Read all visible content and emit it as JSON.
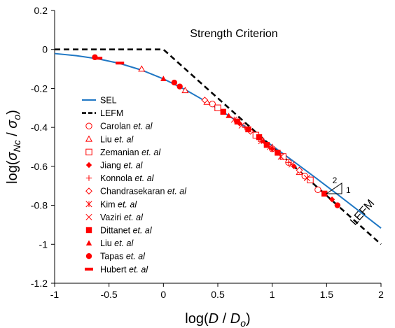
{
  "chart_data": {
    "type": "scatter",
    "xlabel": "log(D / D_o)",
    "ylabel": "log(σ_Nc / σ_o)",
    "xlim": [
      -1,
      2
    ],
    "ylim": [
      -1.2,
      0.2
    ],
    "x_ticks": [
      "-1",
      "-0.5",
      "0",
      "0.5",
      "1",
      "1.5",
      "2"
    ],
    "y_ticks": [
      "0.2",
      "0",
      "-0.2",
      "-0.4",
      "-0.6",
      "-0.8",
      "-1",
      "-1.2"
    ],
    "grid": false,
    "legend_position": "left-middle",
    "annotations": {
      "strength_criterion": "Strength Criterion",
      "lefm": "LEFM",
      "slope_rise": "2",
      "slope_run": "1"
    },
    "colors": {
      "sel": "#1f77c4",
      "data": "#ff0000",
      "lefm": "#000000"
    },
    "lines": [
      {
        "name": "SEL",
        "style": "solid",
        "color": "#1f77c4",
        "x": [
          -1,
          -0.8,
          -0.6,
          -0.4,
          -0.2,
          0,
          0.2,
          0.4,
          0.6,
          0.8,
          1.0,
          1.2,
          1.4,
          1.6,
          1.8,
          2.0
        ],
        "y": [
          -0.021,
          -0.032,
          -0.048,
          -0.072,
          -0.106,
          -0.151,
          -0.206,
          -0.27,
          -0.34,
          -0.415,
          -0.494,
          -0.576,
          -0.659,
          -0.744,
          -0.83,
          -0.917
        ]
      },
      {
        "name": "LEFM",
        "style": "dashed",
        "color": "#000000",
        "x": [
          -1,
          0,
          2
        ],
        "y": [
          0,
          0,
          -1
        ]
      }
    ],
    "series": [
      {
        "name": "Carolan",
        "suffix": " et. al",
        "marker": "circle-open",
        "x": [
          0.45,
          1.0,
          1.15,
          1.3,
          1.42
        ],
        "y": [
          -0.28,
          -0.51,
          -0.58,
          -0.65,
          -0.72
        ]
      },
      {
        "name": "Liu",
        "suffix": " et. al",
        "marker": "triangle-open",
        "x": [
          -0.2,
          0.2,
          0.4,
          0.9,
          1.25
        ],
        "y": [
          -0.1,
          -0.21,
          -0.27,
          -0.46,
          -0.63
        ]
      },
      {
        "name": "Zemanian",
        "suffix": " et. al",
        "marker": "square-open",
        "x": [
          0.5,
          0.85,
          1.1,
          1.35
        ],
        "y": [
          -0.3,
          -0.44,
          -0.55,
          -0.67
        ]
      },
      {
        "name": "Jiang",
        "suffix": " et. al",
        "marker": "diamond-filled",
        "x": [
          0.7,
          1.0,
          1.2,
          1.55
        ],
        "y": [
          -0.38,
          -0.51,
          -0.6,
          -0.77
        ]
      },
      {
        "name": "Konnola",
        "suffix": " et. al",
        "marker": "plus",
        "x": [
          0.75,
          0.95,
          1.05,
          1.15
        ],
        "y": [
          -0.4,
          -0.49,
          -0.53,
          -0.58
        ]
      },
      {
        "name": "Chandrasekaran",
        "suffix": " et. al",
        "marker": "diamond-open",
        "x": [
          0.38,
          0.8,
          1.25
        ],
        "y": [
          -0.26,
          -0.42,
          -0.62
        ]
      },
      {
        "name": "Kim",
        "suffix": " et. al",
        "marker": "asterisk",
        "x": [
          0.65,
          0.9,
          1.08
        ],
        "y": [
          -0.36,
          -0.47,
          -0.55
        ]
      },
      {
        "name": "Vaziri",
        "suffix": " et. al",
        "marker": "x",
        "x": [
          0.72,
          0.98,
          1.18,
          1.32
        ],
        "y": [
          -0.39,
          -0.5,
          -0.59,
          -0.66
        ]
      },
      {
        "name": "Dittanet",
        "suffix": " et. al",
        "marker": "square-filled",
        "x": [
          0.55,
          0.68,
          0.78,
          0.88,
          0.95,
          1.05,
          1.48
        ],
        "y": [
          -0.32,
          -0.37,
          -0.41,
          -0.45,
          -0.49,
          -0.53,
          -0.74
        ]
      },
      {
        "name": "Liu",
        "suffix": " et. al",
        "marker": "triangle-filled",
        "x": [
          0.0,
          0.6,
          0.92
        ],
        "y": [
          -0.15,
          -0.34,
          -0.47
        ]
      },
      {
        "name": "Tapas",
        "suffix": " et. al",
        "marker": "circle-filled",
        "x": [
          -0.63,
          0.1,
          0.15,
          1.6
        ],
        "y": [
          -0.04,
          -0.17,
          -0.19,
          -0.8
        ]
      },
      {
        "name": "Hubert",
        "suffix": " et. al",
        "marker": "dash",
        "x": [
          -0.6,
          -0.4
        ],
        "y": [
          -0.045,
          -0.07
        ]
      }
    ]
  }
}
